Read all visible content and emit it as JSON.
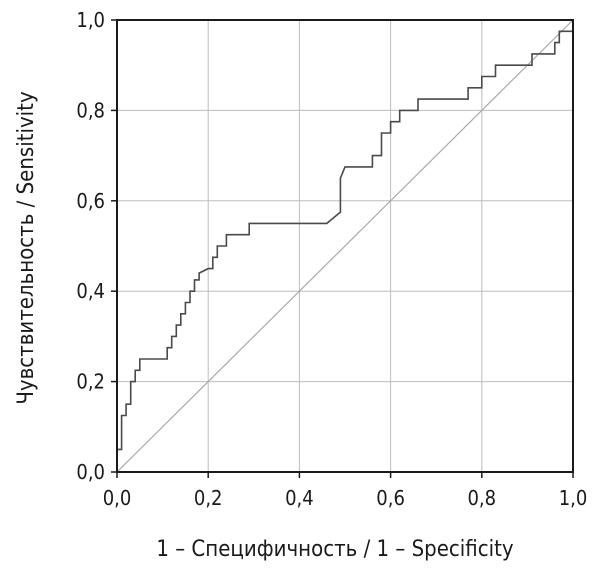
{
  "chart_data": {
    "type": "line",
    "title": "",
    "xlabel": "1 – Специфичность / 1 – Specificity",
    "ylabel": "Чувствительность / Sensitivity",
    "xlim": [
      0,
      1
    ],
    "ylim": [
      0,
      1
    ],
    "grid": true,
    "x_ticks": [
      "0,0",
      "0,2",
      "0,4",
      "0,6",
      "0,8",
      "1,0"
    ],
    "y_ticks": [
      "0,0",
      "0,2",
      "0,4",
      "0,6",
      "0,8",
      "1,0"
    ],
    "series": [
      {
        "x": [
          0.0,
          0.0,
          0.01,
          0.01,
          0.02,
          0.02,
          0.03,
          0.03,
          0.04,
          0.04,
          0.05,
          0.05,
          0.06,
          0.06,
          0.11,
          0.11,
          0.12,
          0.12,
          0.13,
          0.13,
          0.14,
          0.14,
          0.15,
          0.15,
          0.16,
          0.16,
          0.17,
          0.17,
          0.18,
          0.18,
          0.2,
          0.21,
          0.21,
          0.22,
          0.22,
          0.24,
          0.24,
          0.29,
          0.29,
          0.46,
          0.49,
          0.49,
          0.5,
          0.51,
          0.51,
          0.56,
          0.56,
          0.58,
          0.58,
          0.6,
          0.6,
          0.62,
          0.62,
          0.64,
          0.64,
          0.66,
          0.66,
          0.77,
          0.77,
          0.8,
          0.8,
          0.83,
          0.83,
          0.91,
          0.91,
          0.93,
          0.93,
          0.96,
          0.96,
          0.97,
          0.97,
          1.0,
          1.0
        ],
        "y": [
          0.0,
          0.05,
          0.05,
          0.125,
          0.125,
          0.15,
          0.15,
          0.2,
          0.2,
          0.225,
          0.225,
          0.25,
          0.25,
          0.25,
          0.25,
          0.275,
          0.275,
          0.3,
          0.3,
          0.325,
          0.325,
          0.35,
          0.35,
          0.375,
          0.375,
          0.4,
          0.4,
          0.425,
          0.425,
          0.44,
          0.45,
          0.45,
          0.475,
          0.475,
          0.5,
          0.5,
          0.525,
          0.525,
          0.55,
          0.55,
          0.575,
          0.65,
          0.675,
          0.675,
          0.675,
          0.675,
          0.7,
          0.7,
          0.75,
          0.75,
          0.775,
          0.775,
          0.8,
          0.8,
          0.8,
          0.8,
          0.825,
          0.825,
          0.85,
          0.85,
          0.875,
          0.875,
          0.9,
          0.9,
          0.925,
          0.925,
          0.925,
          0.925,
          0.95,
          0.95,
          0.975,
          0.975,
          1.0
        ]
      },
      {
        "x": [
          0,
          1
        ],
        "y": [
          0,
          1
        ]
      }
    ]
  }
}
